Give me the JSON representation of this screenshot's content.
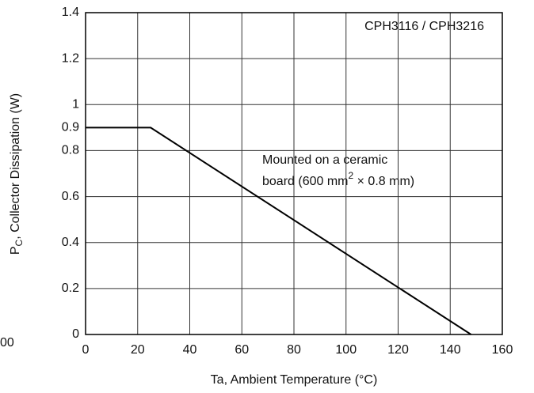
{
  "chart_data": {
    "type": "line",
    "xlabel": "Ta, Ambient Temperature (°C)",
    "ylabel": {
      "main": "P",
      "sub": "C",
      "rest": ", Collector Dissipation (W)"
    },
    "x": [
      0,
      25,
      148
    ],
    "series": [
      {
        "values": [
          0.9,
          0.9,
          0
        ],
        "color": "#000000"
      }
    ],
    "xlim": [
      0,
      160
    ],
    "xticks": [
      0,
      20,
      40,
      60,
      80,
      100,
      120,
      140,
      160
    ],
    "ylim": [
      0,
      1.4
    ],
    "yticks": [
      0,
      0.2,
      0.4,
      0.6,
      0.8,
      1.0,
      1.2,
      1.4
    ],
    "extra_yticks": [
      0.9
    ],
    "grid": true,
    "annotations": {
      "model": "CPH3116 / CPH3216",
      "line1": "Mounted on a ceramic",
      "line2a": "board (600 mm",
      "line2sup": "2",
      "line2b": " × 0.8 mm)"
    },
    "edge_text": "00"
  }
}
